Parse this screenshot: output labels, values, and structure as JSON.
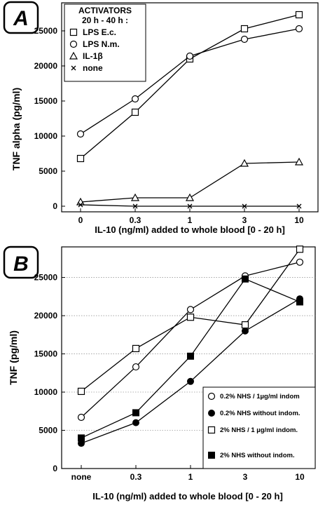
{
  "chart_data": [
    {
      "type": "line",
      "panel_label": "A",
      "ylabel": "TNF alpha  (pg/ml)",
      "xlabel": "IL-10 (ng/ml) added to whole blood [0 - 20 h]",
      "categories": [
        "0",
        "0.3",
        "1",
        "3",
        "10"
      ],
      "ylim": [
        0,
        28000
      ],
      "yticks": [
        0,
        5000,
        10000,
        15000,
        20000,
        25000
      ],
      "grid": false,
      "legend": {
        "title_lines": [
          "ACTIVATORS",
          "20 h - 40 h :"
        ],
        "position": "top-left"
      },
      "series": [
        {
          "name": "LPS E.c.",
          "marker": "open-square",
          "values": [
            6800,
            13400,
            21000,
            25300,
            27300
          ]
        },
        {
          "name": "LPS N.m.",
          "marker": "open-circle",
          "values": [
            10300,
            15300,
            21400,
            23800,
            25300
          ]
        },
        {
          "name": "IL-1β",
          "marker": "open-triangle",
          "values": [
            600,
            1200,
            1200,
            6100,
            6300
          ]
        },
        {
          "name": "none",
          "marker": "cross",
          "values": [
            200,
            0,
            0,
            0,
            0
          ]
        }
      ]
    },
    {
      "type": "line",
      "panel_label": "B",
      "ylabel": "TNF  (pg/ml)",
      "xlabel": "IL-10 (ng/ml) added to whole blood [0 - 20 h]",
      "categories": [
        "none",
        "0.3",
        "1",
        "3",
        "10"
      ],
      "ylim": [
        0,
        29000
      ],
      "yticks": [
        0,
        5000,
        10000,
        15000,
        20000,
        25000
      ],
      "grid": true,
      "legend": {
        "position": "bottom-right"
      },
      "series": [
        {
          "name": "0.2% NHS / 1µg/ml indom",
          "marker": "open-circle",
          "values": [
            6700,
            13300,
            20800,
            25200,
            27000
          ]
        },
        {
          "name": "0.2% NHS without indom.",
          "marker": "filled-circle",
          "values": [
            3300,
            6000,
            11400,
            18000,
            22200
          ]
        },
        {
          "name": "2% NHS / 1 µg/ml indom.",
          "marker": "open-square",
          "values": [
            10100,
            15700,
            19800,
            18800,
            28700
          ]
        },
        {
          "name": "2% NHS without indom.",
          "marker": "filled-square",
          "values": [
            4000,
            7300,
            14700,
            24800,
            21800
          ]
        }
      ]
    }
  ]
}
